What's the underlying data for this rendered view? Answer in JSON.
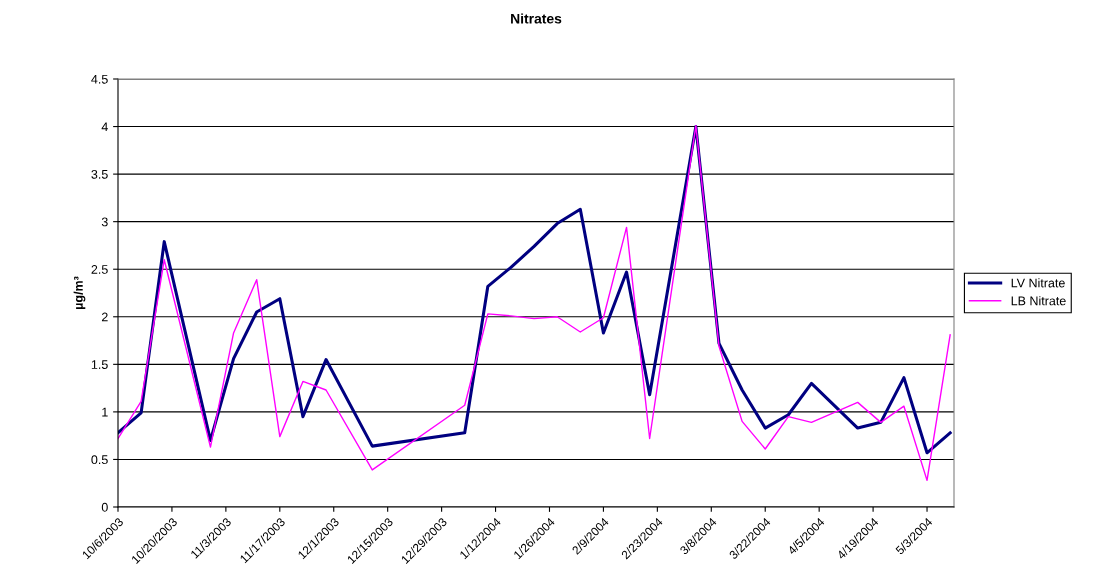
{
  "chart_data": {
    "type": "line",
    "title": "Nitrates",
    "ylabel": "µg/m³",
    "x": [
      "2003-10-06",
      "2003-10-12",
      "2003-10-18",
      "2003-10-30",
      "2003-11-05",
      "2003-11-11",
      "2003-11-17",
      "2003-11-23",
      "2003-11-29",
      "2003-12-11",
      "2004-01-04",
      "2004-01-10",
      "2004-01-16",
      "2004-01-22",
      "2004-01-28",
      "2004-02-03",
      "2004-02-09",
      "2004-02-15",
      "2004-02-21",
      "2004-03-04",
      "2004-03-10",
      "2004-03-16",
      "2004-03-22",
      "2004-03-28",
      "2004-04-03",
      "2004-04-15",
      "2004-04-21",
      "2004-04-27",
      "2004-05-03",
      "2004-05-09"
    ],
    "series": [
      {
        "name": "LV Nitrate",
        "color": "#000080",
        "values": [
          0.78,
          0.99,
          2.79,
          0.7,
          1.56,
          2.05,
          2.19,
          0.95,
          1.55,
          0.64,
          0.78,
          2.32,
          2.52,
          2.74,
          2.98,
          3.13,
          1.83,
          2.47,
          1.18,
          4.0,
          1.72,
          1.23,
          0.83,
          0.97,
          1.3,
          0.83,
          0.89,
          1.36,
          0.57,
          0.78
        ]
      },
      {
        "name": "LB Nitrate",
        "color": "#ff00ff",
        "values": [
          0.72,
          1.11,
          2.6,
          0.63,
          1.83,
          2.39,
          0.74,
          1.32,
          1.23,
          0.39,
          1.07,
          2.03,
          2.01,
          1.98,
          2.0,
          1.84,
          1.99,
          2.94,
          0.72,
          4.01,
          1.69,
          0.9,
          0.61,
          0.95,
          0.89,
          1.1,
          0.89,
          1.06,
          0.28,
          1.81
        ]
      }
    ],
    "xlim": [
      "2003-10-06",
      "2004-05-10"
    ],
    "xticks": [
      {
        "value": "2003-10-06",
        "label": "10/6/2003"
      },
      {
        "value": "2003-10-20",
        "label": "10/20/2003"
      },
      {
        "value": "2003-11-03",
        "label": "11/3/2003"
      },
      {
        "value": "2003-11-17",
        "label": "11/17/2003"
      },
      {
        "value": "2003-12-01",
        "label": "12/1/2003"
      },
      {
        "value": "2003-12-15",
        "label": "12/15/2003"
      },
      {
        "value": "2003-12-29",
        "label": "12/29/2003"
      },
      {
        "value": "2004-01-12",
        "label": "1/12/2004"
      },
      {
        "value": "2004-01-26",
        "label": "1/26/2004"
      },
      {
        "value": "2004-02-09",
        "label": "2/9/2004"
      },
      {
        "value": "2004-02-23",
        "label": "2/23/2004"
      },
      {
        "value": "2004-03-08",
        "label": "3/8/2004"
      },
      {
        "value": "2004-03-22",
        "label": "3/22/2004"
      },
      {
        "value": "2004-04-05",
        "label": "4/5/2004"
      },
      {
        "value": "2004-04-19",
        "label": "4/19/2004"
      },
      {
        "value": "2004-05-03",
        "label": "5/3/2004"
      }
    ],
    "ylim": [
      0,
      4.5
    ],
    "yticks": [
      0,
      0.5,
      1,
      1.5,
      2,
      2.5,
      3,
      3.5,
      4,
      4.5
    ],
    "grid": "y",
    "legend": "right",
    "marker": "none",
    "line_style": "solid"
  }
}
